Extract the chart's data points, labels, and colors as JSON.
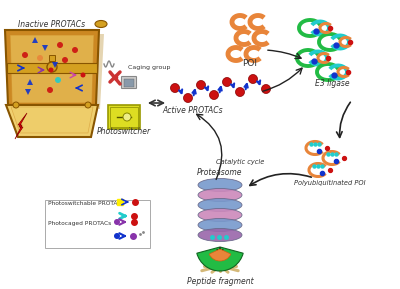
{
  "background_color": "#ffffff",
  "labels": {
    "inactive_protacs": "Inactive PROTACs",
    "photoswitcher": "Photoswitcher",
    "caging_group": "Caging group",
    "active_protacs": "Active PROTACs",
    "poi": "POI",
    "e3_ligase": "E3 ligase",
    "polyubiquitinated_poi": "Polyubiquitinated POI",
    "catalytic_cycle": "Catalytic cycle",
    "proteasome": "Proteasome",
    "peptide_fragment": "Peptide fragment",
    "photoswitchable_protacs": "Photoswitchable PROTACs",
    "photocaged_protacs": "Photocaged PROTACs"
  },
  "colors": {
    "orange": "#E8853A",
    "dark_orange": "#CC6010",
    "blue": "#1133CC",
    "dark_blue": "#0000AA",
    "red": "#CC1111",
    "green": "#22BB44",
    "cyan": "#22CCCC",
    "purple": "#8833AA",
    "gold": "#D4A020",
    "light_gold": "#F0D070",
    "chest_brown": "#CC8822",
    "chest_dark": "#885500",
    "chest_light": "#EECC66",
    "proteasome_blue": "#7799CC",
    "proteasome_pink": "#CC88BB",
    "proteasome_purple": "#9966AA",
    "peptide_wheat": "#D4B878",
    "arrow_dark": "#222222",
    "yellow": "#FFEE00",
    "magenta": "#CC44AA"
  }
}
